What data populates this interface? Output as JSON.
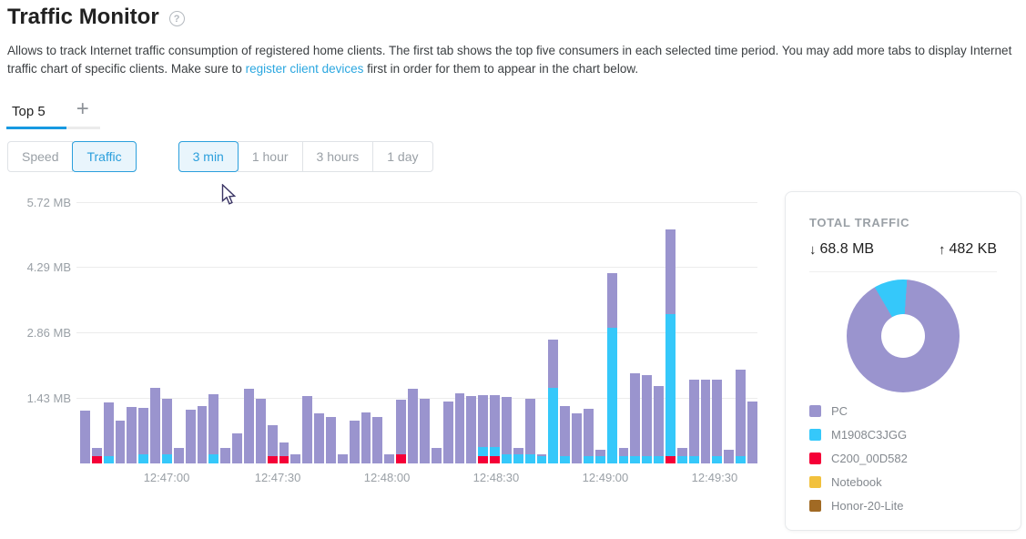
{
  "header": {
    "title": "Traffic Monitor",
    "help_icon": "?"
  },
  "description": {
    "text_before_link": "Allows to track Internet traffic consumption of registered home clients. The first tab shows the top five consumers in each selected time period. You may add more tabs to display Internet traffic chart of specific clients. Make sure to ",
    "link_text": "register client devices",
    "text_after_link": " first in order for them to appear in the chart below."
  },
  "tabs": {
    "active_tab": "Top 5",
    "add_button": "+"
  },
  "controls": {
    "mode_toggle": {
      "options": [
        "Speed",
        "Traffic"
      ],
      "selected": "Traffic"
    },
    "period_toggle": {
      "options": [
        "3 min",
        "1 hour",
        "3 hours",
        "1 day"
      ],
      "selected": "3 min"
    }
  },
  "chart_data": {
    "type": "bar",
    "stacked": true,
    "unit": "MB",
    "ylim": [
      0,
      6.0
    ],
    "y_ticks": [
      "5.72 MB",
      "4.29 MB",
      "2.86 MB",
      "1.43 MB"
    ],
    "x_ticks": [
      "12:47:00",
      "12:47:30",
      "12:48:00",
      "12:48:30",
      "12:49:00",
      "12:49:30"
    ],
    "x_tick_pos_pct": [
      12.77,
      29.17,
      45.3,
      61.42,
      77.55,
      93.68
    ],
    "grid": true,
    "series": [
      {
        "name": "PC",
        "color": "#9a94ce"
      },
      {
        "name": "M1908C3JGG",
        "color": "#35c8fa"
      },
      {
        "name": "C200_00D582",
        "color": "#f50037"
      },
      {
        "name": "Notebook",
        "color": "#f2c13d"
      },
      {
        "name": "Honor-20-Lite",
        "color": "#a16a24"
      }
    ],
    "bars_note": "each bar = [PC, M1908C3JGG, C200_00D582] in MB, ~3s interval over 3 min",
    "bars": [
      [
        1.16,
        0,
        0
      ],
      [
        0.18,
        0,
        0.16
      ],
      [
        1.18,
        0.16,
        0
      ],
      [
        0.94,
        0,
        0
      ],
      [
        1.24,
        0,
        0
      ],
      [
        1.02,
        0.2,
        0
      ],
      [
        1.67,
        0,
        0
      ],
      [
        1.22,
        0.2,
        0
      ],
      [
        0.34,
        0,
        0
      ],
      [
        1.18,
        0,
        0
      ],
      [
        1.26,
        0,
        0
      ],
      [
        1.32,
        0.2,
        0
      ],
      [
        0.35,
        0,
        0
      ],
      [
        0.67,
        0,
        0
      ],
      [
        1.64,
        0,
        0
      ],
      [
        1.42,
        0,
        0
      ],
      [
        0.68,
        0,
        0.16
      ],
      [
        0.3,
        0,
        0.16
      ],
      [
        0.2,
        0,
        0
      ],
      [
        1.48,
        0,
        0
      ],
      [
        1.1,
        0,
        0
      ],
      [
        1.02,
        0,
        0
      ],
      [
        0.2,
        0,
        0
      ],
      [
        0.95,
        0,
        0
      ],
      [
        1.12,
        0,
        0
      ],
      [
        1.02,
        0,
        0
      ],
      [
        0.2,
        0,
        0
      ],
      [
        1.2,
        0,
        0.2
      ],
      [
        1.64,
        0,
        0
      ],
      [
        1.43,
        0,
        0
      ],
      [
        0.35,
        0,
        0
      ],
      [
        1.37,
        0,
        0
      ],
      [
        1.54,
        0,
        0
      ],
      [
        1.48,
        0,
        0
      ],
      [
        1.14,
        0.2,
        0.16
      ],
      [
        1.14,
        0.2,
        0.16
      ],
      [
        1.27,
        0.2,
        0
      ],
      [
        0.15,
        0.2,
        0
      ],
      [
        1.22,
        0.2,
        0
      ],
      [
        0.04,
        0.16,
        0
      ],
      [
        1.07,
        1.66,
        0
      ],
      [
        1.1,
        0.16,
        0
      ],
      [
        1.1,
        0,
        0
      ],
      [
        1.04,
        0.16,
        0
      ],
      [
        0.14,
        0.16,
        0
      ],
      [
        1.2,
        2.98,
        0
      ],
      [
        0.19,
        0.16,
        0
      ],
      [
        1.82,
        0.16,
        0
      ],
      [
        1.78,
        0.16,
        0
      ],
      [
        1.54,
        0.16,
        0
      ],
      [
        1.87,
        3.12,
        0.16
      ],
      [
        0.19,
        0.16,
        0
      ],
      [
        1.68,
        0.16,
        0
      ],
      [
        1.84,
        0,
        0
      ],
      [
        1.68,
        0.16,
        0
      ],
      [
        0.3,
        0,
        0
      ],
      [
        1.9,
        0.16,
        0
      ],
      [
        1.36,
        0,
        0
      ]
    ]
  },
  "total_panel": {
    "title": "TOTAL TRAFFIC",
    "download": {
      "icon": "↓",
      "value": "68.8 MB"
    },
    "upload": {
      "icon": "↑",
      "value": "482 KB"
    },
    "donut": {
      "type": "pie",
      "start_deg": 4,
      "slices": [
        {
          "label": "PC",
          "pct": 90.5,
          "color": "#9a94ce"
        },
        {
          "label": "M1908C3JGG",
          "pct": 9.5,
          "color": "#35c8fa"
        },
        {
          "label": "C200_00D582",
          "pct": 0,
          "color": "#f50037"
        },
        {
          "label": "Notebook",
          "pct": 0,
          "color": "#f2c13d"
        },
        {
          "label": "Honor-20-Lite",
          "pct": 0,
          "color": "#a16a24"
        }
      ]
    },
    "legend": [
      {
        "label": "PC",
        "color": "#9a94ce"
      },
      {
        "label": "M1908C3JGG",
        "color": "#35c8fa"
      },
      {
        "label": "C200_00D582",
        "color": "#f50037"
      },
      {
        "label": "Notebook",
        "color": "#f2c13d"
      },
      {
        "label": "Honor-20-Lite",
        "color": "#a16a24"
      }
    ]
  }
}
